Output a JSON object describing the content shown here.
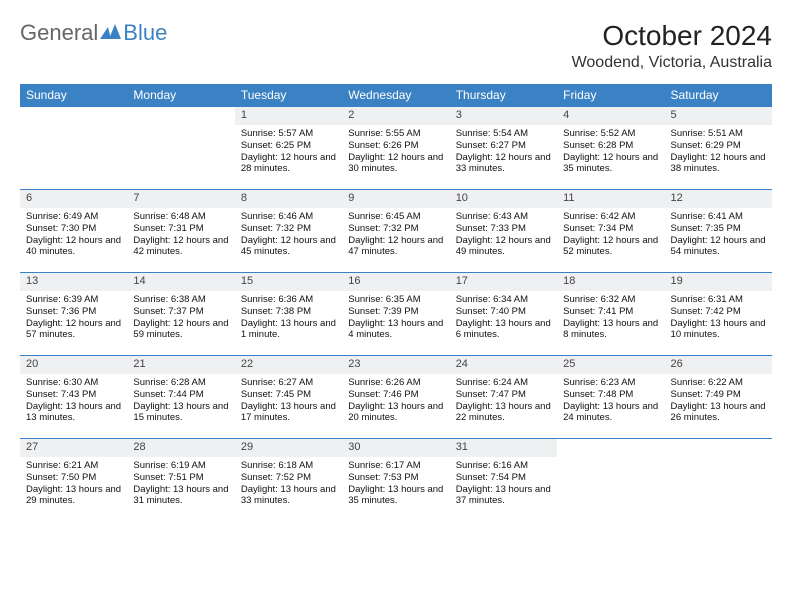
{
  "brand": {
    "part1": "General",
    "part2": "Blue",
    "logo_color": "#3b82c4"
  },
  "title": "October 2024",
  "location": "Woodend, Victoria, Australia",
  "colors": {
    "header_bg": "#3b82c4",
    "header_fg": "#ffffff",
    "daynum_bg": "#eef0f2",
    "row_divider": "#3b82c4",
    "text": "#222222"
  },
  "day_headers": [
    "Sunday",
    "Monday",
    "Tuesday",
    "Wednesday",
    "Thursday",
    "Friday",
    "Saturday"
  ],
  "weeks": [
    [
      null,
      null,
      {
        "n": "1",
        "sr": "5:57 AM",
        "ss": "6:25 PM",
        "dl": "12 hours and 28 minutes."
      },
      {
        "n": "2",
        "sr": "5:55 AM",
        "ss": "6:26 PM",
        "dl": "12 hours and 30 minutes."
      },
      {
        "n": "3",
        "sr": "5:54 AM",
        "ss": "6:27 PM",
        "dl": "12 hours and 33 minutes."
      },
      {
        "n": "4",
        "sr": "5:52 AM",
        "ss": "6:28 PM",
        "dl": "12 hours and 35 minutes."
      },
      {
        "n": "5",
        "sr": "5:51 AM",
        "ss": "6:29 PM",
        "dl": "12 hours and 38 minutes."
      }
    ],
    [
      {
        "n": "6",
        "sr": "6:49 AM",
        "ss": "7:30 PM",
        "dl": "12 hours and 40 minutes."
      },
      {
        "n": "7",
        "sr": "6:48 AM",
        "ss": "7:31 PM",
        "dl": "12 hours and 42 minutes."
      },
      {
        "n": "8",
        "sr": "6:46 AM",
        "ss": "7:32 PM",
        "dl": "12 hours and 45 minutes."
      },
      {
        "n": "9",
        "sr": "6:45 AM",
        "ss": "7:32 PM",
        "dl": "12 hours and 47 minutes."
      },
      {
        "n": "10",
        "sr": "6:43 AM",
        "ss": "7:33 PM",
        "dl": "12 hours and 49 minutes."
      },
      {
        "n": "11",
        "sr": "6:42 AM",
        "ss": "7:34 PM",
        "dl": "12 hours and 52 minutes."
      },
      {
        "n": "12",
        "sr": "6:41 AM",
        "ss": "7:35 PM",
        "dl": "12 hours and 54 minutes."
      }
    ],
    [
      {
        "n": "13",
        "sr": "6:39 AM",
        "ss": "7:36 PM",
        "dl": "12 hours and 57 minutes."
      },
      {
        "n": "14",
        "sr": "6:38 AM",
        "ss": "7:37 PM",
        "dl": "12 hours and 59 minutes."
      },
      {
        "n": "15",
        "sr": "6:36 AM",
        "ss": "7:38 PM",
        "dl": "13 hours and 1 minute."
      },
      {
        "n": "16",
        "sr": "6:35 AM",
        "ss": "7:39 PM",
        "dl": "13 hours and 4 minutes."
      },
      {
        "n": "17",
        "sr": "6:34 AM",
        "ss": "7:40 PM",
        "dl": "13 hours and 6 minutes."
      },
      {
        "n": "18",
        "sr": "6:32 AM",
        "ss": "7:41 PM",
        "dl": "13 hours and 8 minutes."
      },
      {
        "n": "19",
        "sr": "6:31 AM",
        "ss": "7:42 PM",
        "dl": "13 hours and 10 minutes."
      }
    ],
    [
      {
        "n": "20",
        "sr": "6:30 AM",
        "ss": "7:43 PM",
        "dl": "13 hours and 13 minutes."
      },
      {
        "n": "21",
        "sr": "6:28 AM",
        "ss": "7:44 PM",
        "dl": "13 hours and 15 minutes."
      },
      {
        "n": "22",
        "sr": "6:27 AM",
        "ss": "7:45 PM",
        "dl": "13 hours and 17 minutes."
      },
      {
        "n": "23",
        "sr": "6:26 AM",
        "ss": "7:46 PM",
        "dl": "13 hours and 20 minutes."
      },
      {
        "n": "24",
        "sr": "6:24 AM",
        "ss": "7:47 PM",
        "dl": "13 hours and 22 minutes."
      },
      {
        "n": "25",
        "sr": "6:23 AM",
        "ss": "7:48 PM",
        "dl": "13 hours and 24 minutes."
      },
      {
        "n": "26",
        "sr": "6:22 AM",
        "ss": "7:49 PM",
        "dl": "13 hours and 26 minutes."
      }
    ],
    [
      {
        "n": "27",
        "sr": "6:21 AM",
        "ss": "7:50 PM",
        "dl": "13 hours and 29 minutes."
      },
      {
        "n": "28",
        "sr": "6:19 AM",
        "ss": "7:51 PM",
        "dl": "13 hours and 31 minutes."
      },
      {
        "n": "29",
        "sr": "6:18 AM",
        "ss": "7:52 PM",
        "dl": "13 hours and 33 minutes."
      },
      {
        "n": "30",
        "sr": "6:17 AM",
        "ss": "7:53 PM",
        "dl": "13 hours and 35 minutes."
      },
      {
        "n": "31",
        "sr": "6:16 AM",
        "ss": "7:54 PM",
        "dl": "13 hours and 37 minutes."
      },
      null,
      null
    ]
  ],
  "labels": {
    "sunrise": "Sunrise:",
    "sunset": "Sunset:",
    "daylight": "Daylight:"
  }
}
